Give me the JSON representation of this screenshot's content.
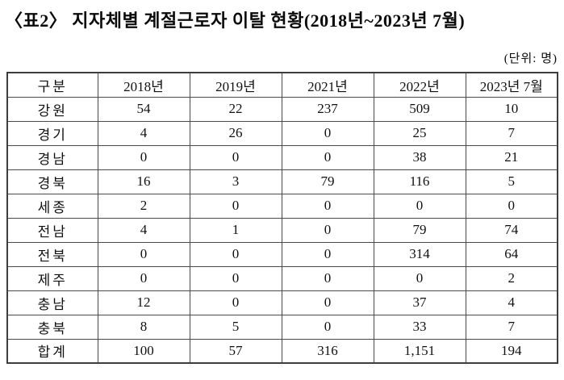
{
  "title": "〈표2〉 지자체별 계절근로자 이탈 현황(2018년~2023년 7월)",
  "unit_label": "(단위: 명)",
  "table": {
    "headers": [
      "구분",
      "2018년",
      "2019년",
      "2021년",
      "2022년",
      "2023년 7월"
    ],
    "rows": [
      {
        "label": "강원",
        "values": [
          "54",
          "22",
          "237",
          "509",
          "10"
        ]
      },
      {
        "label": "경기",
        "values": [
          "4",
          "26",
          "0",
          "25",
          "7"
        ]
      },
      {
        "label": "경남",
        "values": [
          "0",
          "0",
          "0",
          "38",
          "21"
        ]
      },
      {
        "label": "경북",
        "values": [
          "16",
          "3",
          "79",
          "116",
          "5"
        ]
      },
      {
        "label": "세종",
        "values": [
          "2",
          "0",
          "0",
          "0",
          "0"
        ]
      },
      {
        "label": "전남",
        "values": [
          "4",
          "1",
          "0",
          "79",
          "74"
        ]
      },
      {
        "label": "전북",
        "values": [
          "0",
          "0",
          "0",
          "314",
          "64"
        ]
      },
      {
        "label": "제주",
        "values": [
          "0",
          "0",
          "0",
          "0",
          "2"
        ]
      },
      {
        "label": "충남",
        "values": [
          "12",
          "0",
          "0",
          "37",
          "4"
        ]
      },
      {
        "label": "충북",
        "values": [
          "8",
          "5",
          "0",
          "33",
          "7"
        ]
      },
      {
        "label": "합계",
        "values": [
          "100",
          "57",
          "316",
          "1,151",
          "194"
        ]
      }
    ]
  }
}
